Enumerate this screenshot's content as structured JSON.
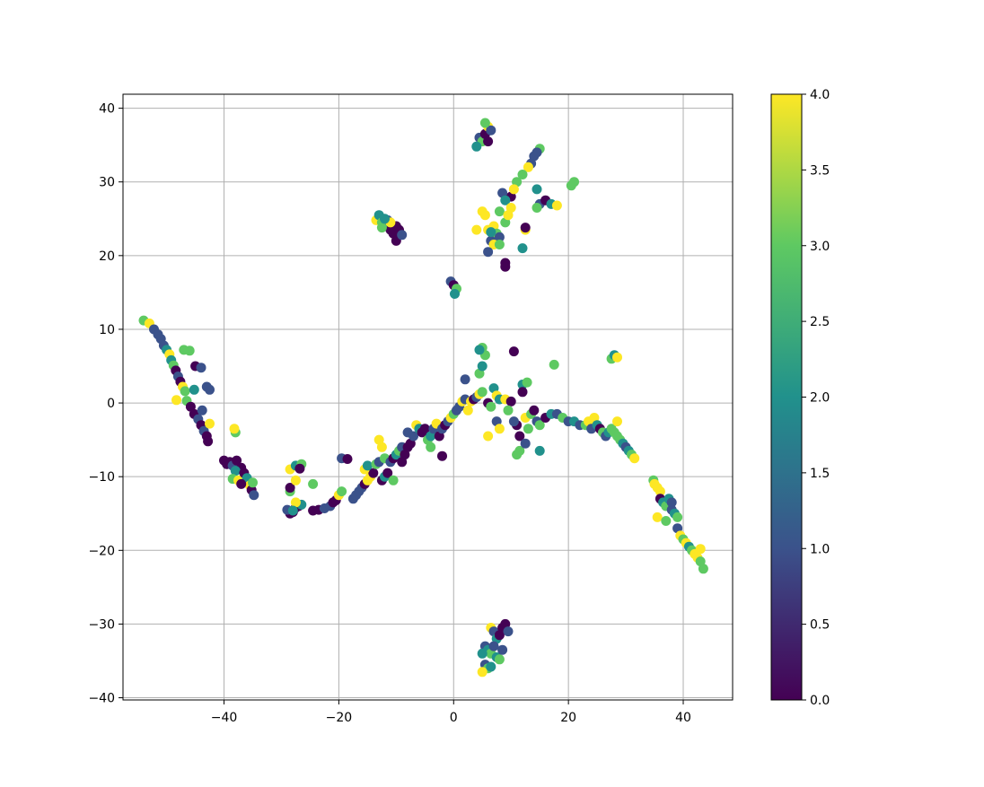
{
  "chart_data": {
    "type": "scatter",
    "title": "",
    "xlabel": "",
    "ylabel": "",
    "xlim": [
      -57.6,
      48.6
    ],
    "ylim": [
      -40.3,
      41.9
    ],
    "grid": true,
    "colormap": "viridis",
    "colormap_stops": [
      "#440154",
      "#3b528b",
      "#21918c",
      "#5ec962",
      "#fde725"
    ],
    "color_range": [
      0.0,
      4.0
    ],
    "x_ticks": [
      {
        "value": -40,
        "label": "−40"
      },
      {
        "value": -20,
        "label": "−20"
      },
      {
        "value": 0,
        "label": "0"
      },
      {
        "value": 20,
        "label": "20"
      },
      {
        "value": 40,
        "label": "40"
      }
    ],
    "y_ticks": [
      {
        "value": -40,
        "label": "−40"
      },
      {
        "value": -30,
        "label": "−30"
      },
      {
        "value": -20,
        "label": "−20"
      },
      {
        "value": -10,
        "label": "−10"
      },
      {
        "value": 0,
        "label": "0"
      },
      {
        "value": 10,
        "label": "10"
      },
      {
        "value": 20,
        "label": "20"
      },
      {
        "value": 30,
        "label": "30"
      },
      {
        "value": 40,
        "label": "40"
      }
    ],
    "colorbar_ticks": [
      {
        "value": 0.0,
        "label": "0.0"
      },
      {
        "value": 0.5,
        "label": "0.5"
      },
      {
        "value": 1.0,
        "label": "1.0"
      },
      {
        "value": 1.5,
        "label": "1.5"
      },
      {
        "value": 2.0,
        "label": "2.0"
      },
      {
        "value": 2.5,
        "label": "2.5"
      },
      {
        "value": 3.0,
        "label": "3.0"
      },
      {
        "value": 3.5,
        "label": "3.5"
      },
      {
        "value": 4.0,
        "label": "4.0"
      }
    ],
    "points": [
      [
        -54.0,
        11.2,
        3
      ],
      [
        -53.0,
        10.8,
        4
      ],
      [
        -52.2,
        10.0,
        1
      ],
      [
        -51.5,
        9.3,
        1
      ],
      [
        -51.0,
        8.7,
        1
      ],
      [
        -50.5,
        7.8,
        1
      ],
      [
        -50.0,
        7.2,
        2
      ],
      [
        -49.5,
        6.6,
        4
      ],
      [
        -49.2,
        5.8,
        2
      ],
      [
        -48.8,
        5.1,
        3
      ],
      [
        -48.4,
        4.4,
        0
      ],
      [
        -48.0,
        3.6,
        1
      ],
      [
        -47.6,
        2.9,
        0
      ],
      [
        -47.2,
        2.2,
        4
      ],
      [
        -46.8,
        1.6,
        3
      ],
      [
        -47.0,
        7.2,
        3
      ],
      [
        -46.0,
        7.1,
        3
      ],
      [
        -45.0,
        5.0,
        0
      ],
      [
        -44.0,
        4.8,
        1
      ],
      [
        -46.5,
        0.3,
        3
      ],
      [
        -45.8,
        -0.5,
        0
      ],
      [
        -45.2,
        -1.5,
        0
      ],
      [
        -44.5,
        -2.2,
        1
      ],
      [
        -44.0,
        -3.0,
        0
      ],
      [
        -43.5,
        -3.8,
        1
      ],
      [
        -43.0,
        -4.5,
        0
      ],
      [
        -42.8,
        -5.2,
        0
      ],
      [
        -42.5,
        -2.8,
        4
      ],
      [
        -43.0,
        2.2,
        1
      ],
      [
        -42.5,
        1.8,
        1
      ],
      [
        -48.3,
        0.4,
        4
      ],
      [
        -45.2,
        1.8,
        2
      ],
      [
        -43.8,
        -1.0,
        1
      ],
      [
        -40.0,
        -7.8,
        0
      ],
      [
        -39.5,
        -8.3,
        0
      ],
      [
        -39.0,
        -8.0,
        0
      ],
      [
        -38.5,
        -8.5,
        1
      ],
      [
        -37.8,
        -7.8,
        0
      ],
      [
        -37.0,
        -8.8,
        0
      ],
      [
        -38.0,
        -9.2,
        2
      ],
      [
        -38.5,
        -10.3,
        3
      ],
      [
        -37.5,
        -10.5,
        4
      ],
      [
        -36.5,
        -9.5,
        0
      ],
      [
        -36.0,
        -10.2,
        2
      ],
      [
        -35.5,
        -11.2,
        4
      ],
      [
        -35.2,
        -11.8,
        0
      ],
      [
        -34.8,
        -12.5,
        1
      ],
      [
        -35.0,
        -10.8,
        3
      ],
      [
        -37.0,
        -11.0,
        0
      ],
      [
        -38.0,
        -4.0,
        3
      ],
      [
        -38.2,
        -3.5,
        4
      ],
      [
        -28.0,
        -14.8,
        0
      ],
      [
        -27.5,
        -14.2,
        0
      ],
      [
        -27.0,
        -14.0,
        0
      ],
      [
        -28.5,
        -15.0,
        0
      ],
      [
        -29.0,
        -14.5,
        1
      ],
      [
        -26.5,
        -13.8,
        2
      ],
      [
        -28.5,
        -12.0,
        3
      ],
      [
        -28.5,
        -11.5,
        0
      ],
      [
        -27.5,
        -10.5,
        4
      ],
      [
        -28.5,
        -9.0,
        4
      ],
      [
        -27.5,
        -8.5,
        2
      ],
      [
        -26.5,
        -8.3,
        3
      ],
      [
        -26.8,
        -8.9,
        0
      ],
      [
        -27.5,
        -13.5,
        4
      ],
      [
        -28.0,
        -14.6,
        2
      ],
      [
        -24.5,
        -11.0,
        3
      ],
      [
        -24.5,
        -14.6,
        0
      ],
      [
        -23.5,
        -14.5,
        0
      ],
      [
        -22.5,
        -14.3,
        1
      ],
      [
        -21.5,
        -14.0,
        1
      ],
      [
        -21.0,
        -13.5,
        0
      ],
      [
        -20.5,
        -13.2,
        0
      ],
      [
        -20.0,
        -12.5,
        4
      ],
      [
        -19.5,
        -12.0,
        3
      ],
      [
        -19.5,
        -7.5,
        1
      ],
      [
        -18.5,
        -7.6,
        0
      ],
      [
        -17.5,
        -13.0,
        1
      ],
      [
        -17.0,
        -12.5,
        1
      ],
      [
        -16.5,
        -12.0,
        1
      ],
      [
        -16.0,
        -11.5,
        1
      ],
      [
        -15.5,
        -11.0,
        0
      ],
      [
        -15.0,
        -10.5,
        4
      ],
      [
        -14.5,
        -10.0,
        4
      ],
      [
        -14.0,
        -9.5,
        0
      ],
      [
        -15.5,
        -9.0,
        4
      ],
      [
        -15.0,
        -8.5,
        2
      ],
      [
        -13.5,
        -8.3,
        3
      ],
      [
        -13.0,
        -8.0,
        1
      ],
      [
        -12.5,
        -10.5,
        0
      ],
      [
        -12.0,
        -10.0,
        2
      ],
      [
        -11.5,
        -9.5,
        0
      ],
      [
        -12.0,
        -7.5,
        3
      ],
      [
        -13.0,
        -5.0,
        4
      ],
      [
        -12.5,
        -6.0,
        4
      ],
      [
        -11.0,
        -8.0,
        1
      ],
      [
        -10.5,
        -7.5,
        0
      ],
      [
        -10.0,
        -7.0,
        2
      ],
      [
        -9.5,
        -6.5,
        3
      ],
      [
        -9.0,
        -6.0,
        1
      ],
      [
        -8.5,
        -7.0,
        0
      ],
      [
        -8.0,
        -6.0,
        0
      ],
      [
        -8.0,
        -4.0,
        1
      ],
      [
        -7.5,
        -5.5,
        0
      ],
      [
        -7.0,
        -4.5,
        1
      ],
      [
        -6.5,
        -3.0,
        4
      ],
      [
        -6.0,
        -3.5,
        2
      ],
      [
        -5.5,
        -4.0,
        0
      ],
      [
        -5.0,
        -3.5,
        0
      ],
      [
        -4.5,
        -5.0,
        3
      ],
      [
        -4.0,
        -4.5,
        2
      ],
      [
        -3.5,
        -3.5,
        1
      ],
      [
        -3.0,
        -2.8,
        4
      ],
      [
        -2.5,
        -4.5,
        0
      ],
      [
        -2.0,
        -3.5,
        1
      ],
      [
        -1.5,
        -3.0,
        0
      ],
      [
        -1.0,
        -2.5,
        1
      ],
      [
        -0.5,
        -2.0,
        4
      ],
      [
        0.0,
        -1.5,
        3
      ],
      [
        0.5,
        -1.0,
        1
      ],
      [
        -2.0,
        -7.2,
        0
      ],
      [
        -4.0,
        -6.0,
        3
      ],
      [
        -9.0,
        -8.0,
        0
      ],
      [
        -10.5,
        -10.5,
        3
      ],
      [
        1.0,
        -0.5,
        1
      ],
      [
        1.5,
        0.2,
        4
      ],
      [
        2.0,
        0.5,
        1
      ],
      [
        2.5,
        -1.0,
        4
      ],
      [
        3.0,
        0.2,
        4
      ],
      [
        3.5,
        0.5,
        0
      ],
      [
        4.0,
        0.8,
        1
      ],
      [
        4.5,
        1.2,
        4
      ],
      [
        5.0,
        1.5,
        3
      ],
      [
        2.0,
        3.2,
        1
      ],
      [
        4.5,
        4.0,
        3
      ],
      [
        5.0,
        5.0,
        2
      ],
      [
        5.5,
        6.5,
        3
      ],
      [
        5.0,
        7.5,
        3
      ],
      [
        4.5,
        7.2,
        2
      ],
      [
        6.0,
        0.0,
        0
      ],
      [
        6.5,
        -0.5,
        3
      ],
      [
        7.0,
        2.0,
        2
      ],
      [
        7.5,
        1.0,
        4
      ],
      [
        8.0,
        0.5,
        2
      ],
      [
        6.0,
        -4.5,
        4
      ],
      [
        7.5,
        -2.5,
        1
      ],
      [
        8.0,
        -3.5,
        4
      ],
      [
        9.0,
        0.5,
        4
      ],
      [
        10.0,
        0.2,
        0
      ],
      [
        10.5,
        7.0,
        0
      ],
      [
        11.0,
        -3.0,
        0
      ],
      [
        11.5,
        -4.5,
        0
      ],
      [
        10.5,
        -2.5,
        1
      ],
      [
        12.0,
        2.5,
        2
      ],
      [
        12.5,
        -2.0,
        4
      ],
      [
        13.0,
        -3.5,
        3
      ],
      [
        11.5,
        -6.5,
        3
      ],
      [
        11.0,
        -7.0,
        3
      ],
      [
        12.5,
        -5.5,
        1
      ],
      [
        13.5,
        -1.5,
        3
      ],
      [
        14.0,
        -1.0,
        0
      ],
      [
        14.5,
        -2.5,
        1
      ],
      [
        15.0,
        -3.0,
        3
      ],
      [
        16.0,
        -2.0,
        0
      ],
      [
        15.0,
        -6.5,
        2
      ],
      [
        17.5,
        5.2,
        3
      ],
      [
        17.0,
        -1.5,
        2
      ],
      [
        18.0,
        -1.5,
        1
      ],
      [
        19.0,
        -2.0,
        3
      ],
      [
        20.0,
        -2.5,
        1
      ],
      [
        21.0,
        -2.5,
        2
      ],
      [
        22.0,
        -3.0,
        1
      ],
      [
        23.0,
        -3.0,
        3
      ],
      [
        23.5,
        -2.5,
        4
      ],
      [
        24.0,
        -3.5,
        1
      ],
      [
        24.5,
        -2.0,
        4
      ],
      [
        25.0,
        -3.0,
        2
      ],
      [
        25.5,
        -3.5,
        0
      ],
      [
        26.0,
        -4.0,
        3
      ],
      [
        26.5,
        -4.5,
        1
      ],
      [
        27.0,
        -4.0,
        2
      ],
      [
        27.5,
        -3.5,
        3
      ],
      [
        28.0,
        -4.0,
        3
      ],
      [
        28.5,
        -4.5,
        3
      ],
      [
        28.5,
        -2.5,
        4
      ],
      [
        29.0,
        -5.0,
        3
      ],
      [
        29.5,
        -5.5,
        2
      ],
      [
        30.0,
        -6.0,
        1
      ],
      [
        30.5,
        -6.5,
        2
      ],
      [
        31.0,
        -7.0,
        3
      ],
      [
        31.5,
        -7.5,
        4
      ],
      [
        27.5,
        6.0,
        3
      ],
      [
        28.0,
        6.5,
        2
      ],
      [
        28.5,
        6.2,
        4
      ],
      [
        12.0,
        1.5,
        0
      ],
      [
        12.8,
        2.8,
        3
      ],
      [
        9.5,
        -1.0,
        3
      ],
      [
        34.8,
        -10.5,
        3
      ],
      [
        35.0,
        -11.0,
        4
      ],
      [
        35.5,
        -11.5,
        4
      ],
      [
        36.0,
        -12.0,
        4
      ],
      [
        36.0,
        -13.0,
        0
      ],
      [
        36.5,
        -13.5,
        2
      ],
      [
        37.0,
        -14.0,
        3
      ],
      [
        37.5,
        -13.0,
        2
      ],
      [
        38.0,
        -14.5,
        1
      ],
      [
        38.5,
        -15.0,
        2
      ],
      [
        39.0,
        -15.5,
        3
      ],
      [
        35.5,
        -15.5,
        4
      ],
      [
        37.0,
        -16.0,
        3
      ],
      [
        39.0,
        -17.0,
        1
      ],
      [
        39.5,
        -18.0,
        4
      ],
      [
        40.0,
        -18.5,
        3
      ],
      [
        40.5,
        -19.0,
        4
      ],
      [
        41.0,
        -19.5,
        2
      ],
      [
        41.5,
        -20.0,
        3
      ],
      [
        42.0,
        -20.5,
        4
      ],
      [
        42.5,
        -21.0,
        4
      ],
      [
        43.0,
        -21.5,
        3
      ],
      [
        43.5,
        -22.5,
        3
      ],
      [
        43.0,
        -19.8,
        4
      ],
      [
        38.0,
        -13.5,
        1
      ],
      [
        4.5,
        36.0,
        1
      ],
      [
        5.0,
        35.5,
        3
      ],
      [
        5.5,
        36.5,
        0
      ],
      [
        6.0,
        37.5,
        4
      ],
      [
        6.5,
        37.0,
        1
      ],
      [
        4.0,
        34.8,
        2
      ],
      [
        5.5,
        38.0,
        3
      ],
      [
        6.0,
        35.5,
        0
      ],
      [
        15.0,
        34.5,
        3
      ],
      [
        14.5,
        34.0,
        1
      ],
      [
        14.0,
        33.5,
        1
      ],
      [
        13.5,
        32.5,
        1
      ],
      [
        13.0,
        32.0,
        4
      ],
      [
        12.0,
        31.0,
        3
      ],
      [
        11.0,
        30.0,
        3
      ],
      [
        14.5,
        29.0,
        2
      ],
      [
        10.0,
        28.0,
        0
      ],
      [
        8.5,
        28.5,
        1
      ],
      [
        9.0,
        27.5,
        2
      ],
      [
        10.5,
        29.0,
        4
      ],
      [
        15.0,
        27.0,
        1
      ],
      [
        16.0,
        27.5,
        0
      ],
      [
        17.0,
        27.0,
        2
      ],
      [
        18.0,
        26.8,
        4
      ],
      [
        14.5,
        26.5,
        3
      ],
      [
        21.0,
        30.0,
        3
      ],
      [
        20.5,
        29.5,
        3
      ],
      [
        8.0,
        26.0,
        3
      ],
      [
        5.0,
        26.0,
        4
      ],
      [
        5.5,
        25.5,
        4
      ],
      [
        6.0,
        23.5,
        4
      ],
      [
        7.0,
        24.0,
        4
      ],
      [
        7.5,
        23.0,
        3
      ],
      [
        8.0,
        22.5,
        1
      ],
      [
        9.0,
        24.5,
        3
      ],
      [
        9.5,
        25.5,
        4
      ],
      [
        10.0,
        26.5,
        4
      ],
      [
        6.5,
        22.0,
        1
      ],
      [
        7.0,
        21.5,
        4
      ],
      [
        6.0,
        20.5,
        1
      ],
      [
        8.0,
        21.5,
        3
      ],
      [
        9.0,
        19.0,
        0
      ],
      [
        9.0,
        18.5,
        0
      ],
      [
        12.0,
        21.0,
        2
      ],
      [
        12.5,
        23.5,
        4
      ],
      [
        12.5,
        23.8,
        0
      ],
      [
        4.0,
        23.5,
        4
      ],
      [
        6.5,
        23.2,
        2
      ],
      [
        -13.5,
        24.8,
        4
      ],
      [
        -13.0,
        25.5,
        2
      ],
      [
        -12.5,
        24.5,
        3
      ],
      [
        -12.0,
        24.0,
        2
      ],
      [
        -11.5,
        24.8,
        1
      ],
      [
        -11.0,
        23.5,
        0
      ],
      [
        -10.5,
        23.0,
        0
      ],
      [
        -10.0,
        24.0,
        0
      ],
      [
        -9.5,
        23.5,
        0
      ],
      [
        -10.0,
        22.0,
        0
      ],
      [
        -9.0,
        22.8,
        1
      ],
      [
        -12.5,
        23.8,
        3
      ],
      [
        -11.0,
        24.5,
        4
      ],
      [
        -12.0,
        25.0,
        2
      ],
      [
        -0.5,
        16.5,
        1
      ],
      [
        0.0,
        16.0,
        0
      ],
      [
        0.5,
        15.5,
        3
      ],
      [
        0.2,
        14.8,
        2
      ],
      [
        6.5,
        -30.5,
        4
      ],
      [
        7.0,
        -31.0,
        1
      ],
      [
        7.5,
        -32.0,
        2
      ],
      [
        8.0,
        -31.5,
        0
      ],
      [
        8.5,
        -30.5,
        0
      ],
      [
        9.0,
        -30.0,
        0
      ],
      [
        9.5,
        -31.0,
        1
      ],
      [
        5.5,
        -33.0,
        1
      ],
      [
        6.0,
        -33.5,
        2
      ],
      [
        6.5,
        -34.0,
        3
      ],
      [
        7.0,
        -33.0,
        1
      ],
      [
        7.5,
        -34.5,
        2
      ],
      [
        8.0,
        -34.8,
        3
      ],
      [
        5.5,
        -35.5,
        1
      ],
      [
        6.0,
        -36.0,
        3
      ],
      [
        5.0,
        -36.5,
        4
      ],
      [
        6.5,
        -35.8,
        2
      ],
      [
        8.5,
        -33.5,
        1
      ],
      [
        5.0,
        -34.0,
        2
      ]
    ]
  }
}
